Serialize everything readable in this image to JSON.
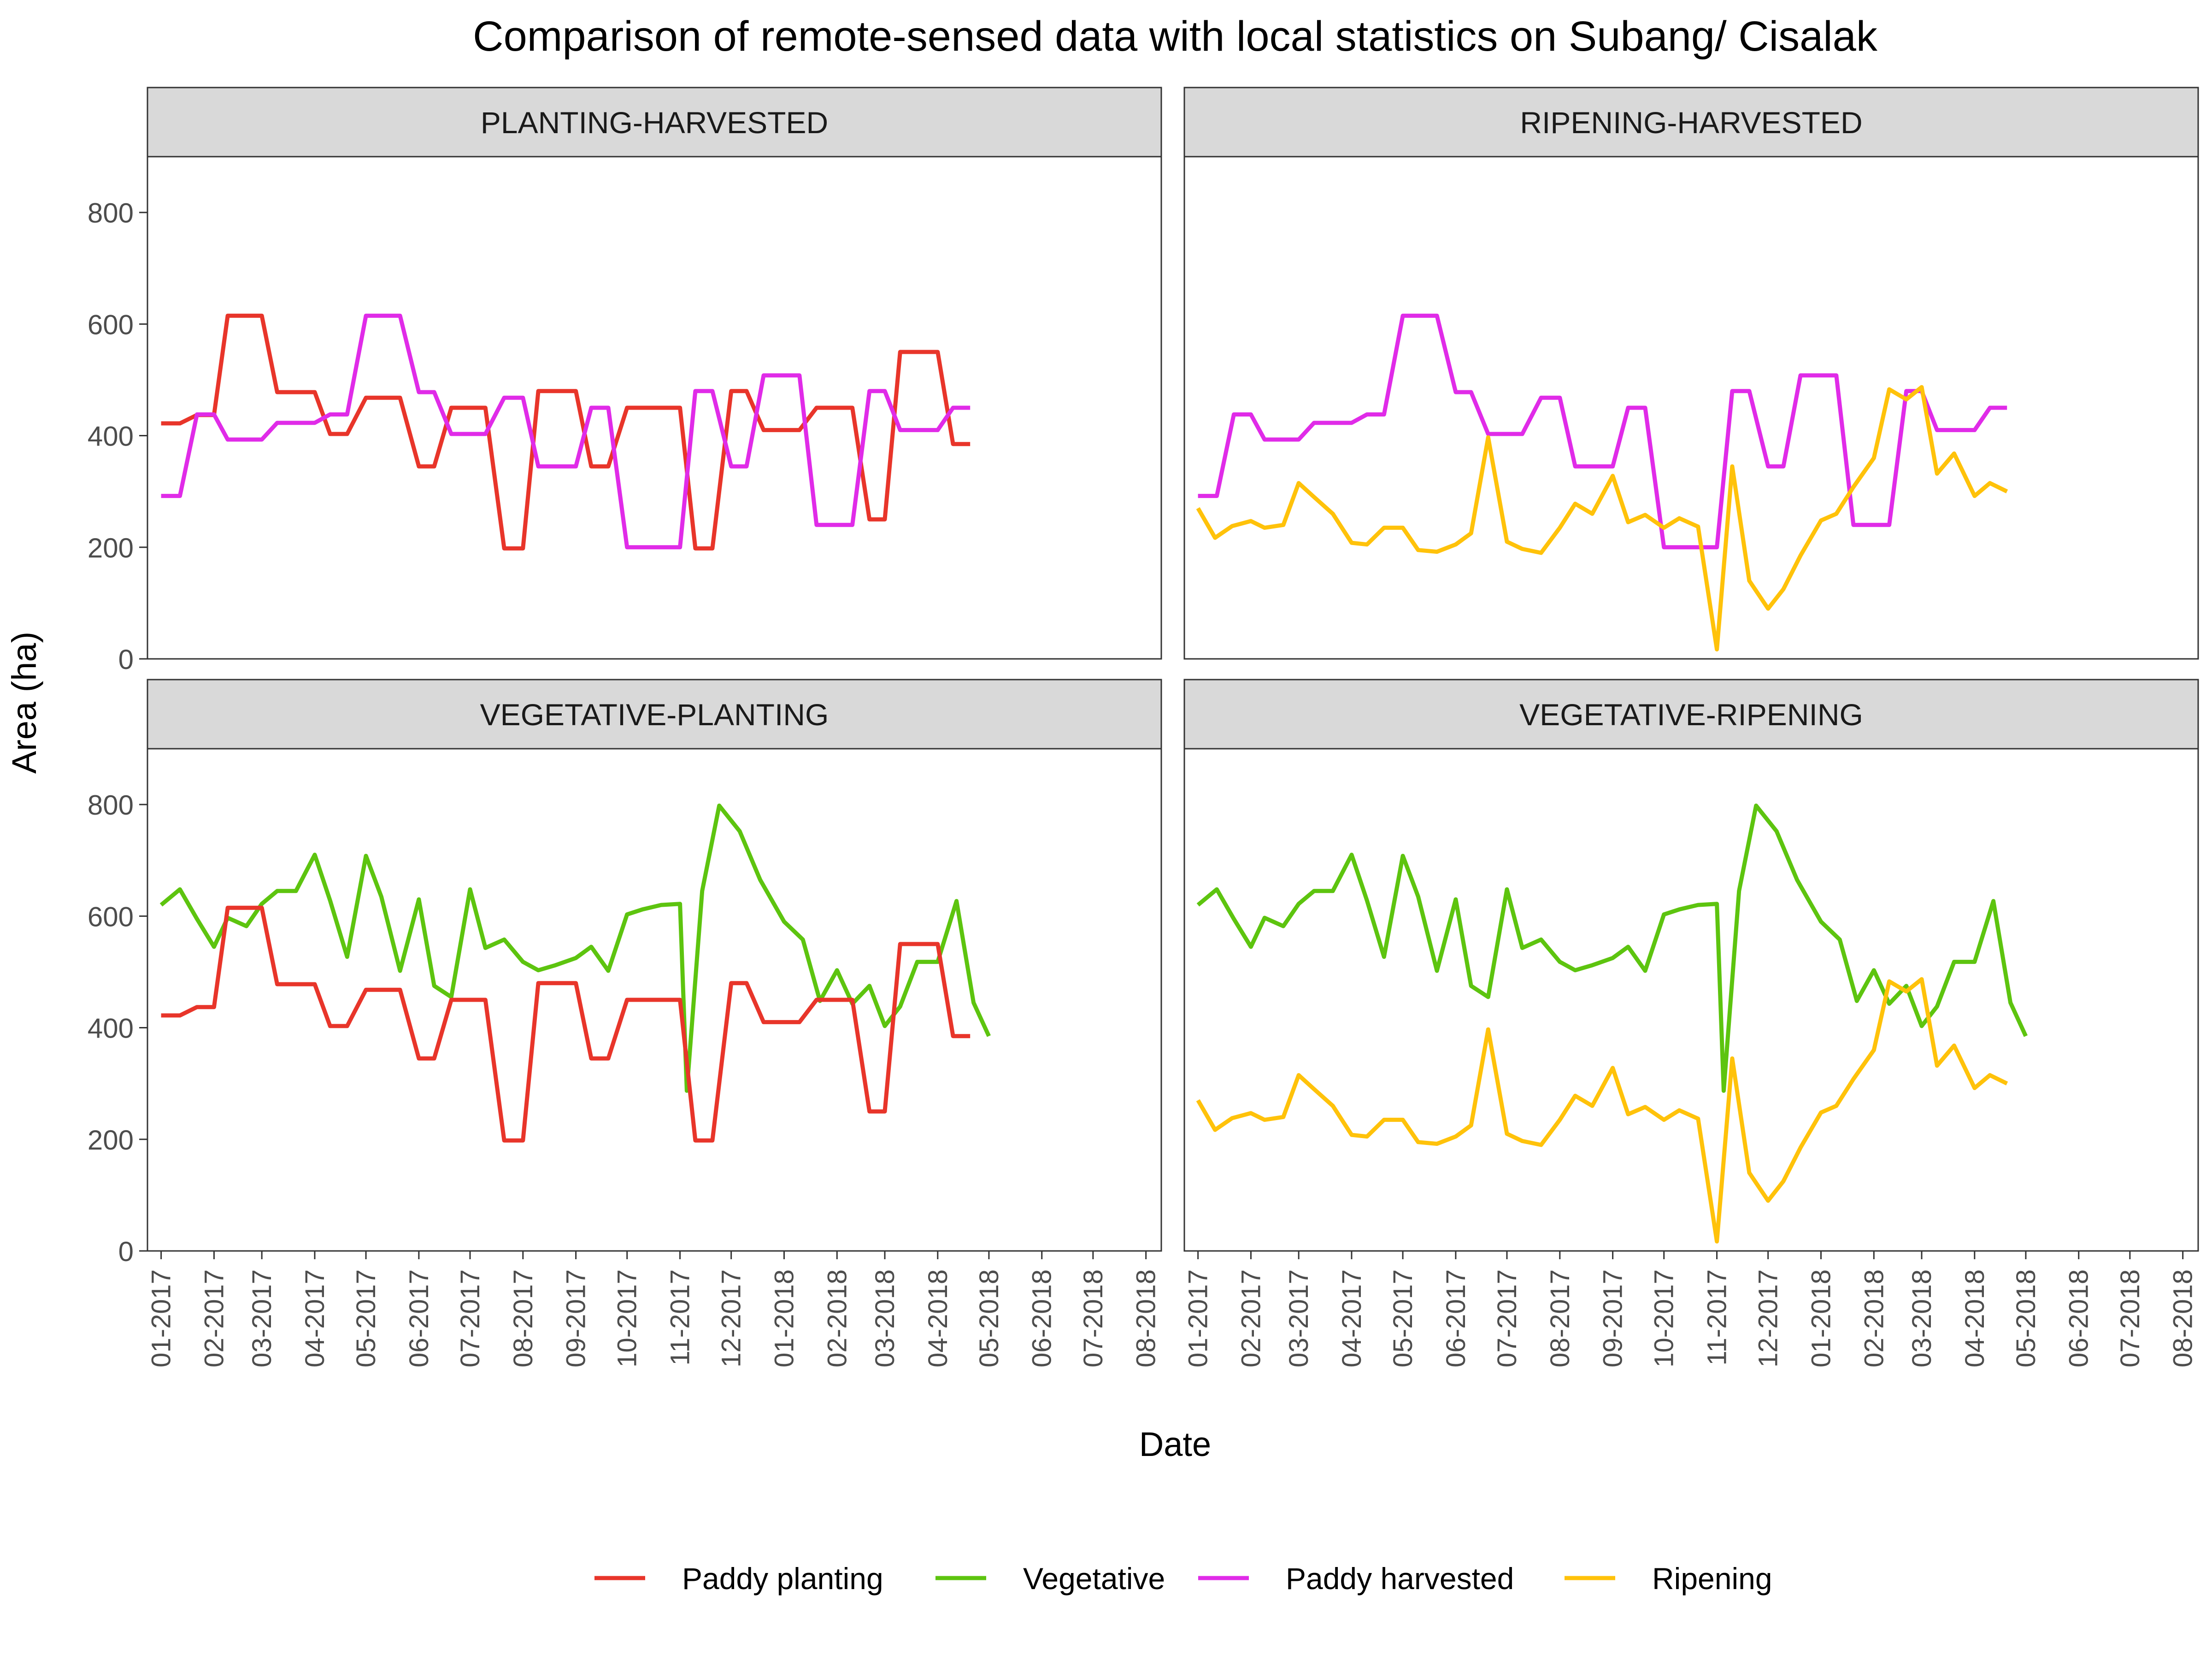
{
  "chart_data": {
    "type": "line",
    "title": "Comparison of remote-sensed data with local statistics on Subang/ Cisalak",
    "xlabel": "Date",
    "ylabel": "Area (ha)",
    "ylim": [
      0,
      900
    ],
    "y_ticks": [
      0,
      200,
      400,
      600,
      800
    ],
    "x_range": [
      "2016-12-24",
      "2018-08-10"
    ],
    "x_ticks": [
      "2017-01-01",
      "2017-02-01",
      "2017-03-01",
      "2017-04-01",
      "2017-05-01",
      "2017-06-01",
      "2017-07-01",
      "2017-08-01",
      "2017-09-01",
      "2017-10-01",
      "2017-11-01",
      "2017-12-01",
      "2018-01-01",
      "2018-02-01",
      "2018-03-01",
      "2018-04-01",
      "2018-05-01",
      "2018-06-01",
      "2018-07-01",
      "2018-08-01"
    ],
    "x_tick_labels": [
      "01-2017",
      "02-2017",
      "03-2017",
      "04-2017",
      "05-2017",
      "06-2017",
      "07-2017",
      "08-2017",
      "09-2017",
      "10-2017",
      "11-2017",
      "12-2017",
      "01-2018",
      "02-2018",
      "03-2018",
      "04-2018",
      "05-2018",
      "06-2018",
      "07-2018",
      "08-2018"
    ],
    "grid": false,
    "legend_position": "bottom",
    "colors": {
      "paddy_planting": "#e8352a",
      "vegetative": "#5dc40f",
      "paddy_harvested": "#e02be8",
      "ripening": "#ffc20a",
      "strip_bg": "#d9d9d9",
      "panel_border": "#333333",
      "axis_text": "#4d4d4d"
    },
    "legend": [
      {
        "key": "paddy_planting",
        "label": "Paddy planting"
      },
      {
        "key": "vegetative",
        "label": "Vegetative"
      },
      {
        "key": "paddy_harvested",
        "label": "Paddy harvested"
      },
      {
        "key": "ripening",
        "label": "Ripening"
      }
    ],
    "panels": [
      {
        "title": "PLANTING-HARVESTED",
        "series": [
          "paddy_planting",
          "paddy_harvested"
        ]
      },
      {
        "title": "RIPENING-HARVESTED",
        "series": [
          "paddy_harvested",
          "ripening"
        ]
      },
      {
        "title": "VEGETATIVE-PLANTING",
        "series": [
          "vegetative",
          "paddy_planting"
        ]
      },
      {
        "title": "VEGETATIVE-RIPENING",
        "series": [
          "vegetative",
          "ripening"
        ]
      }
    ],
    "series": {
      "paddy_planting": [
        [
          "2017-01-01",
          422
        ],
        [
          "2017-01-12",
          422
        ],
        [
          "2017-01-22",
          437
        ],
        [
          "2017-02-01",
          437
        ],
        [
          "2017-02-09",
          615
        ],
        [
          "2017-02-20",
          615
        ],
        [
          "2017-03-01",
          615
        ],
        [
          "2017-03-10",
          478
        ],
        [
          "2017-03-21",
          478
        ],
        [
          "2017-04-01",
          478
        ],
        [
          "2017-04-10",
          403
        ],
        [
          "2017-04-20",
          403
        ],
        [
          "2017-05-01",
          468
        ],
        [
          "2017-05-10",
          468
        ],
        [
          "2017-05-21",
          468
        ],
        [
          "2017-06-01",
          345
        ],
        [
          "2017-06-10",
          345
        ],
        [
          "2017-06-20",
          450
        ],
        [
          "2017-07-01",
          450
        ],
        [
          "2017-07-10",
          450
        ],
        [
          "2017-07-21",
          198
        ],
        [
          "2017-08-01",
          198
        ],
        [
          "2017-08-10",
          480
        ],
        [
          "2017-08-20",
          480
        ],
        [
          "2017-09-01",
          480
        ],
        [
          "2017-09-10",
          345
        ],
        [
          "2017-09-20",
          345
        ],
        [
          "2017-10-01",
          450
        ],
        [
          "2017-10-10",
          450
        ],
        [
          "2017-10-21",
          450
        ],
        [
          "2017-11-01",
          450
        ],
        [
          "2017-11-10",
          198
        ],
        [
          "2017-11-20",
          198
        ],
        [
          "2017-12-01",
          480
        ],
        [
          "2017-12-10",
          480
        ],
        [
          "2017-12-20",
          410
        ],
        [
          "2018-01-01",
          410
        ],
        [
          "2018-01-10",
          410
        ],
        [
          "2018-01-20",
          450
        ],
        [
          "2018-02-01",
          450
        ],
        [
          "2018-02-10",
          450
        ],
        [
          "2018-02-20",
          250
        ],
        [
          "2018-03-01",
          250
        ],
        [
          "2018-03-10",
          550
        ],
        [
          "2018-03-20",
          550
        ],
        [
          "2018-04-01",
          550
        ],
        [
          "2018-04-10",
          385
        ],
        [
          "2018-04-20",
          385
        ]
      ],
      "paddy_harvested": [
        [
          "2017-01-01",
          292
        ],
        [
          "2017-01-12",
          292
        ],
        [
          "2017-01-22",
          438
        ],
        [
          "2017-02-01",
          438
        ],
        [
          "2017-02-09",
          393
        ],
        [
          "2017-02-20",
          393
        ],
        [
          "2017-03-01",
          393
        ],
        [
          "2017-03-10",
          423
        ],
        [
          "2017-03-21",
          423
        ],
        [
          "2017-04-01",
          423
        ],
        [
          "2017-04-10",
          438
        ],
        [
          "2017-04-20",
          438
        ],
        [
          "2017-05-01",
          615
        ],
        [
          "2017-05-10",
          615
        ],
        [
          "2017-05-21",
          615
        ],
        [
          "2017-06-01",
          478
        ],
        [
          "2017-06-10",
          478
        ],
        [
          "2017-06-20",
          403
        ],
        [
          "2017-07-01",
          403
        ],
        [
          "2017-07-10",
          403
        ],
        [
          "2017-07-21",
          468
        ],
        [
          "2017-08-01",
          468
        ],
        [
          "2017-08-10",
          345
        ],
        [
          "2017-08-20",
          345
        ],
        [
          "2017-09-01",
          345
        ],
        [
          "2017-09-10",
          450
        ],
        [
          "2017-09-20",
          450
        ],
        [
          "2017-10-01",
          200
        ],
        [
          "2017-10-10",
          200
        ],
        [
          "2017-10-21",
          200
        ],
        [
          "2017-11-01",
          200
        ],
        [
          "2017-11-10",
          480
        ],
        [
          "2017-11-20",
          480
        ],
        [
          "2017-12-01",
          345
        ],
        [
          "2017-12-10",
          345
        ],
        [
          "2017-12-20",
          508
        ],
        [
          "2018-01-01",
          508
        ],
        [
          "2018-01-10",
          508
        ],
        [
          "2018-01-20",
          240
        ],
        [
          "2018-02-01",
          240
        ],
        [
          "2018-02-10",
          240
        ],
        [
          "2018-02-20",
          480
        ],
        [
          "2018-03-01",
          480
        ],
        [
          "2018-03-10",
          410
        ],
        [
          "2018-03-20",
          410
        ],
        [
          "2018-04-01",
          410
        ],
        [
          "2018-04-10",
          450
        ],
        [
          "2018-04-20",
          450
        ]
      ],
      "vegetative": [
        [
          "2017-01-01",
          620
        ],
        [
          "2017-01-12",
          648
        ],
        [
          "2017-01-22",
          595
        ],
        [
          "2017-02-01",
          545
        ],
        [
          "2017-02-09",
          597
        ],
        [
          "2017-02-20",
          582
        ],
        [
          "2017-03-01",
          622
        ],
        [
          "2017-03-10",
          645
        ],
        [
          "2017-03-21",
          645
        ],
        [
          "2017-04-01",
          710
        ],
        [
          "2017-04-10",
          628
        ],
        [
          "2017-04-20",
          527
        ],
        [
          "2017-05-01",
          708
        ],
        [
          "2017-05-10",
          635
        ],
        [
          "2017-05-21",
          502
        ],
        [
          "2017-06-01",
          630
        ],
        [
          "2017-06-10",
          475
        ],
        [
          "2017-06-20",
          455
        ],
        [
          "2017-07-01",
          648
        ],
        [
          "2017-07-10",
          543
        ],
        [
          "2017-07-21",
          558
        ],
        [
          "2017-08-01",
          518
        ],
        [
          "2017-08-10",
          503
        ],
        [
          "2017-08-20",
          512
        ],
        [
          "2017-09-01",
          525
        ],
        [
          "2017-09-10",
          545
        ],
        [
          "2017-09-20",
          502
        ],
        [
          "2017-10-01",
          603
        ],
        [
          "2017-10-10",
          612
        ],
        [
          "2017-10-21",
          620
        ],
        [
          "2017-11-01",
          622
        ],
        [
          "2017-11-05",
          287
        ],
        [
          "2017-11-14",
          645
        ],
        [
          "2017-11-24",
          798
        ],
        [
          "2017-12-06",
          752
        ],
        [
          "2017-12-18",
          665
        ],
        [
          "2018-01-01",
          590
        ],
        [
          "2018-01-12",
          558
        ],
        [
          "2018-01-22",
          448
        ],
        [
          "2018-02-01",
          503
        ],
        [
          "2018-02-10",
          443
        ],
        [
          "2018-02-20",
          475
        ],
        [
          "2018-03-01",
          403
        ],
        [
          "2018-03-10",
          438
        ],
        [
          "2018-03-20",
          518
        ],
        [
          "2018-04-01",
          518
        ],
        [
          "2018-04-12",
          627
        ],
        [
          "2018-04-22",
          445
        ],
        [
          "2018-05-01",
          385
        ]
      ],
      "ripening": [
        [
          "2017-01-01",
          270
        ],
        [
          "2017-01-11",
          217
        ],
        [
          "2017-01-21",
          238
        ],
        [
          "2017-02-01",
          247
        ],
        [
          "2017-02-09",
          235
        ],
        [
          "2017-02-20",
          240
        ],
        [
          "2017-03-01",
          315
        ],
        [
          "2017-03-10",
          290
        ],
        [
          "2017-03-21",
          260
        ],
        [
          "2017-04-01",
          208
        ],
        [
          "2017-04-10",
          205
        ],
        [
          "2017-04-20",
          235
        ],
        [
          "2017-05-01",
          235
        ],
        [
          "2017-05-10",
          195
        ],
        [
          "2017-05-21",
          192
        ],
        [
          "2017-06-01",
          205
        ],
        [
          "2017-06-10",
          225
        ],
        [
          "2017-06-20",
          397
        ],
        [
          "2017-07-01",
          210
        ],
        [
          "2017-07-10",
          197
        ],
        [
          "2017-07-21",
          190
        ],
        [
          "2017-08-01",
          235
        ],
        [
          "2017-08-10",
          278
        ],
        [
          "2017-08-20",
          260
        ],
        [
          "2017-09-01",
          328
        ],
        [
          "2017-09-10",
          245
        ],
        [
          "2017-09-20",
          258
        ],
        [
          "2017-10-01",
          235
        ],
        [
          "2017-10-10",
          252
        ],
        [
          "2017-10-21",
          237
        ],
        [
          "2017-11-01",
          17
        ],
        [
          "2017-11-10",
          345
        ],
        [
          "2017-11-20",
          140
        ],
        [
          "2017-12-01",
          90
        ],
        [
          "2017-12-10",
          125
        ],
        [
          "2017-12-20",
          185
        ],
        [
          "2018-01-01",
          248
        ],
        [
          "2018-01-10",
          260
        ],
        [
          "2018-01-20",
          308
        ],
        [
          "2018-02-01",
          360
        ],
        [
          "2018-02-10",
          483
        ],
        [
          "2018-02-20",
          465
        ],
        [
          "2018-03-01",
          487
        ],
        [
          "2018-03-10",
          332
        ],
        [
          "2018-03-20",
          368
        ],
        [
          "2018-04-01",
          292
        ],
        [
          "2018-04-10",
          315
        ],
        [
          "2018-04-20",
          300
        ]
      ]
    }
  }
}
